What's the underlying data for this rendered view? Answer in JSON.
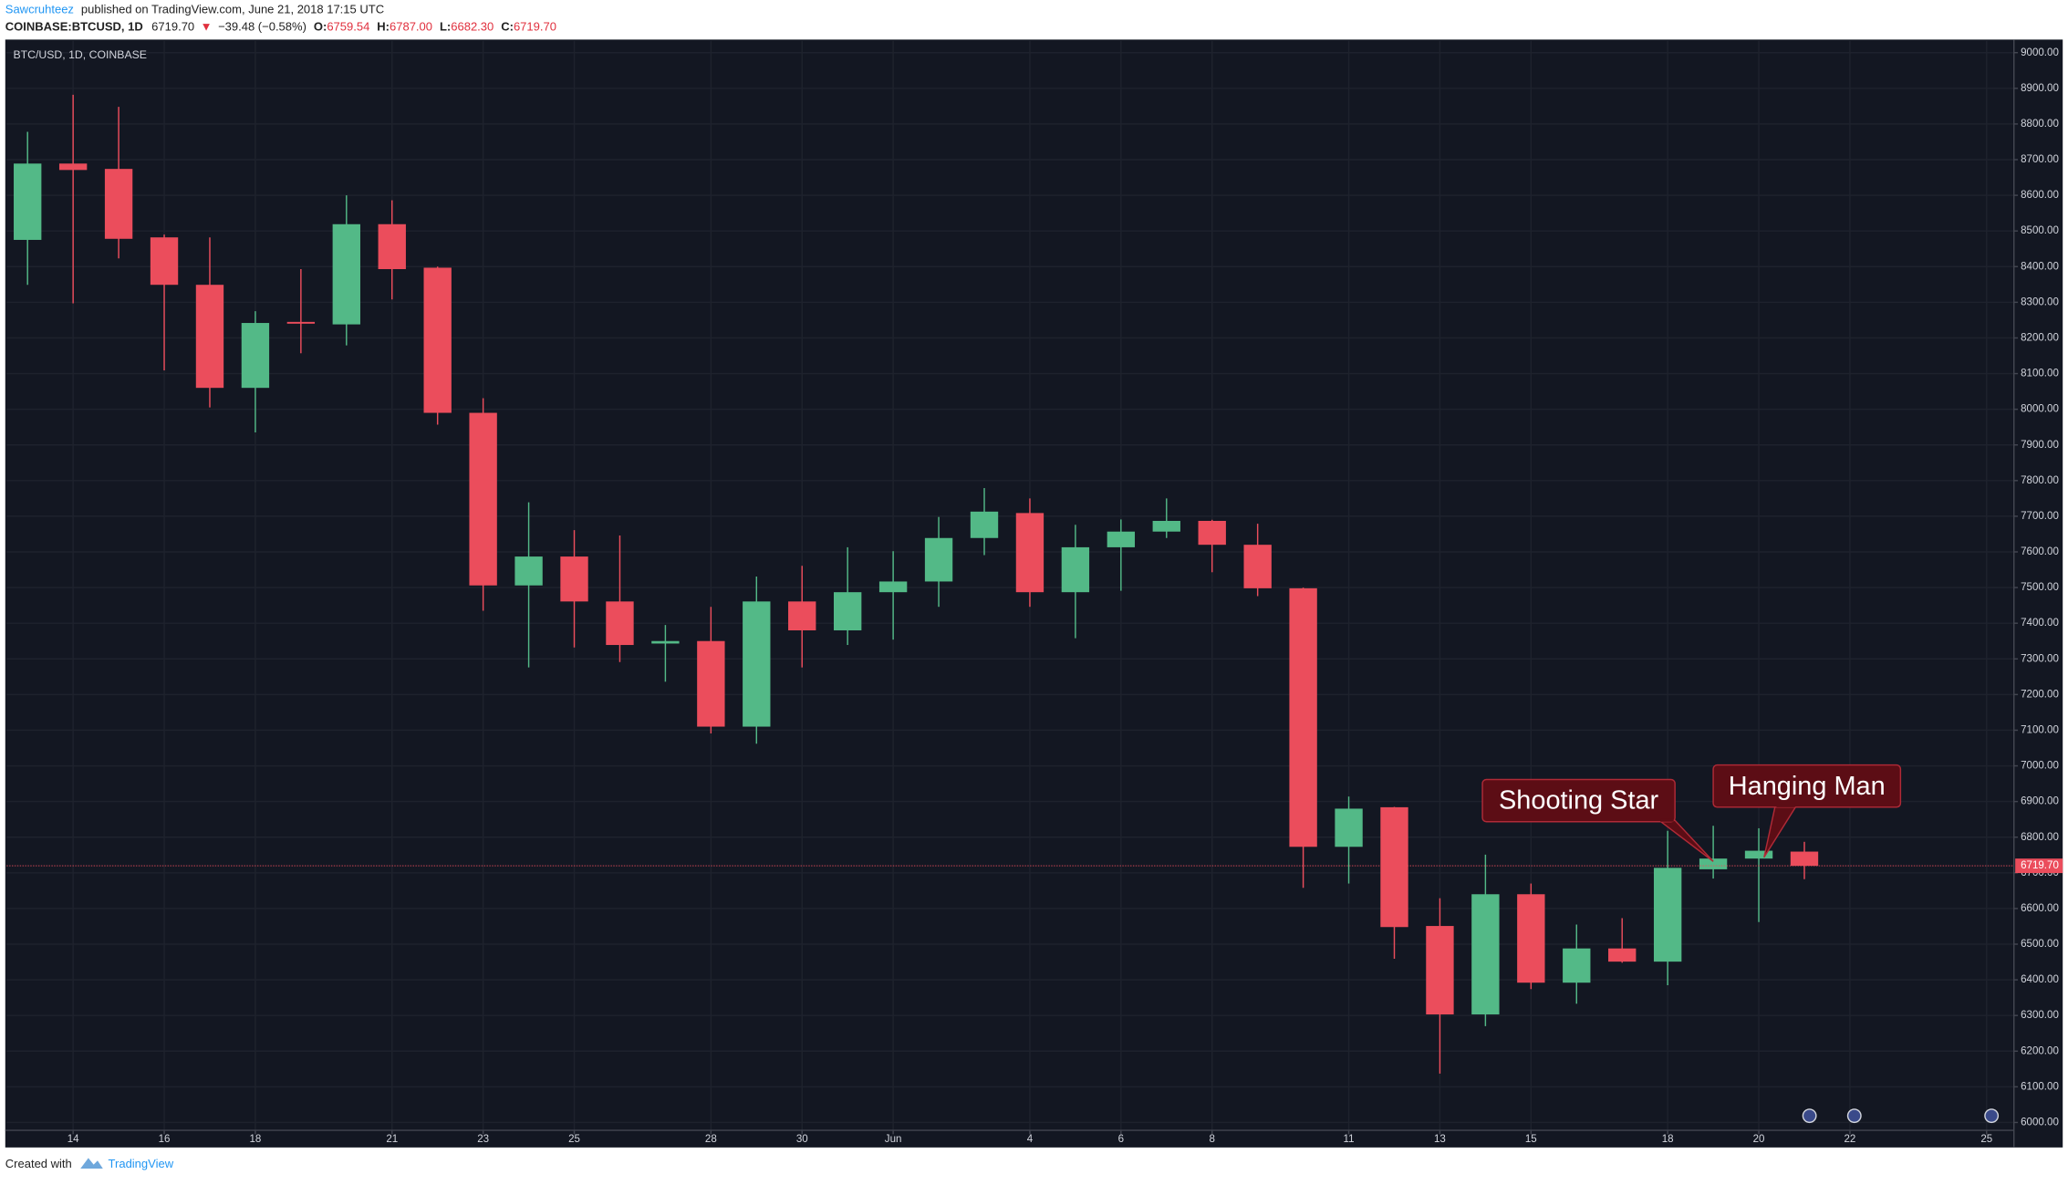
{
  "header": {
    "author": "Sawcruhteez",
    "published": "published on TradingView.com, June 21, 2018 17:15 UTC",
    "symbol": "COINBASE:BTCUSD, 1D",
    "last": "6719.70",
    "arrow": "▼",
    "change": "−39.48 (−0.58%)",
    "o_label": "O:",
    "o": "6759.54",
    "h_label": "H:",
    "h": "6787.00",
    "l_label": "L:",
    "l": "6682.30",
    "c_label": "C:",
    "c": "6719.70"
  },
  "footer": {
    "created": "Created with",
    "brand": "TradingView"
  },
  "chart_data": {
    "type": "candlestick",
    "title": "BTC/USD, 1D, COINBASE",
    "up_color": "#53b987",
    "down_color": "#eb4d5c",
    "grid": true,
    "x": [
      0,
      1,
      2,
      3,
      4,
      5,
      6,
      7,
      8,
      9,
      10,
      11,
      12,
      13,
      14,
      15,
      16,
      17,
      18,
      19,
      20,
      21,
      22,
      23,
      24,
      25,
      26,
      27,
      28,
      29,
      30,
      31,
      32,
      33,
      34,
      35,
      36,
      37,
      38,
      39
    ],
    "open": [
      8475,
      8689,
      8674,
      8482,
      8349,
      8060,
      8245,
      8238,
      8519,
      8397,
      7990,
      7506,
      7587,
      7461,
      7343,
      7350,
      7110,
      7461,
      7380,
      7487,
      7517,
      7639,
      7709,
      7487,
      7613,
      7657,
      7687,
      7620,
      7498,
      6773,
      6884,
      6551,
      6303,
      6640,
      6392,
      6488,
      6451,
      6710,
      6740,
      6759.54
    ],
    "high": [
      8778,
      8882,
      8848,
      8490,
      8482,
      8275,
      8393,
      8600,
      8586,
      8400,
      8031,
      7739,
      7661,
      7646,
      7395,
      7446,
      7531,
      7561,
      7613,
      7602,
      7698,
      7779,
      7750,
      7676,
      7691,
      7750,
      7690,
      7679,
      7500,
      6914,
      6885,
      6629,
      6751,
      6670,
      6555,
      6573,
      6818,
      6832,
      6825,
      6787
    ],
    "low": [
      8349,
      8297,
      8423,
      8109,
      8005,
      7935,
      8157,
      8179,
      8308,
      7957,
      7435,
      7276,
      7332,
      7291,
      7236,
      7091,
      7062,
      7276,
      7339,
      7354,
      7446,
      7591,
      7446,
      7358,
      7491,
      7639,
      7543,
      7476,
      6658,
      6670,
      6459,
      6137,
      6270,
      6374,
      6333,
      6448,
      6385,
      6684,
      6562,
      6682.3
    ],
    "close": [
      8689,
      8671,
      8478,
      8349,
      8060,
      8242,
      8240,
      8519,
      8393,
      7990,
      7506,
      7587,
      7461,
      7339,
      7350,
      7110,
      7461,
      7380,
      7487,
      7517,
      7639,
      7713,
      7487,
      7613,
      7657,
      7687,
      7620,
      7498,
      6773,
      6880,
      6548,
      6303,
      6640,
      6392,
      6488,
      6451,
      6714,
      6740,
      6762,
      6719.7
    ],
    "xlim": [
      -0.46,
      43.6
    ],
    "xticks": [
      {
        "value": 1,
        "label": "14"
      },
      {
        "value": 3,
        "label": "16"
      },
      {
        "value": 5,
        "label": "18"
      },
      {
        "value": 8,
        "label": "21"
      },
      {
        "value": 10,
        "label": "23"
      },
      {
        "value": 12,
        "label": "25"
      },
      {
        "value": 15,
        "label": "28"
      },
      {
        "value": 17,
        "label": "30"
      },
      {
        "value": 19,
        "label": "Jun"
      },
      {
        "value": 22,
        "label": "4"
      },
      {
        "value": 24,
        "label": "6"
      },
      {
        "value": 26,
        "label": "8"
      },
      {
        "value": 29,
        "label": "11"
      },
      {
        "value": 31,
        "label": "13"
      },
      {
        "value": 33,
        "label": "15"
      },
      {
        "value": 36,
        "label": "18"
      },
      {
        "value": 38,
        "label": "20"
      },
      {
        "value": 40,
        "label": "22"
      },
      {
        "value": 43,
        "label": "25"
      }
    ],
    "ylim": [
      5978,
      9033
    ],
    "yticks": [
      {
        "value": 6000,
        "label": "6000.00"
      },
      {
        "value": 6100,
        "label": "6100.00"
      },
      {
        "value": 6200,
        "label": "6200.00"
      },
      {
        "value": 6300,
        "label": "6300.00"
      },
      {
        "value": 6400,
        "label": "6400.00"
      },
      {
        "value": 6500,
        "label": "6500.00"
      },
      {
        "value": 6600,
        "label": "6600.00"
      },
      {
        "value": 6700,
        "label": "6700.00"
      },
      {
        "value": 6800,
        "label": "6800.00"
      },
      {
        "value": 6900,
        "label": "6900.00"
      },
      {
        "value": 7000,
        "label": "7000.00"
      },
      {
        "value": 7100,
        "label": "7100.00"
      },
      {
        "value": 7200,
        "label": "7200.00"
      },
      {
        "value": 7300,
        "label": "7300.00"
      },
      {
        "value": 7400,
        "label": "7400.00"
      },
      {
        "value": 7500,
        "label": "7500.00"
      },
      {
        "value": 7600,
        "label": "7600.00"
      },
      {
        "value": 7700,
        "label": "7700.00"
      },
      {
        "value": 7800,
        "label": "7800.00"
      },
      {
        "value": 7900,
        "label": "7900.00"
      },
      {
        "value": 8000,
        "label": "8000.00"
      },
      {
        "value": 8100,
        "label": "8100.00"
      },
      {
        "value": 8200,
        "label": "8200.00"
      },
      {
        "value": 8300,
        "label": "8300.00"
      },
      {
        "value": 8400,
        "label": "8400.00"
      },
      {
        "value": 8500,
        "label": "8500.00"
      },
      {
        "value": 8600,
        "label": "8600.00"
      },
      {
        "value": 8700,
        "label": "8700.00"
      },
      {
        "value": 8800,
        "label": "8800.00"
      },
      {
        "value": 8900,
        "label": "8900.00"
      },
      {
        "value": 9000,
        "label": "9000.00"
      }
    ],
    "last_price": {
      "value": 6719.7,
      "label": "6719.70"
    },
    "annotations": [
      "Shooting Star",
      "Hanging Man"
    ]
  }
}
